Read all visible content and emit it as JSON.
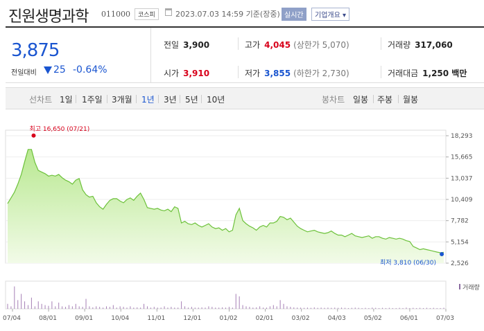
{
  "header": {
    "name": "진원생명과학",
    "code": "011000",
    "market": "코스피",
    "datetime": "2023.07.03 14:59 기준(장중)",
    "realtime": "실시간",
    "company_btn": "기업개요 ▾"
  },
  "price": {
    "current": "3,875",
    "change_label": "전일대비",
    "change": "25",
    "change_pct": "-0.64%"
  },
  "stats": {
    "prev_label": "전일",
    "prev": "3,900",
    "high_label": "고가",
    "high": "4,045",
    "upper": "(상한가 5,070)",
    "volume_label": "거래량",
    "volume": "317,060",
    "open_label": "시가",
    "open": "3,910",
    "low_label": "저가",
    "low": "3,855",
    "lower": "(하한가 2,730)",
    "amount_label": "거래대금",
    "amount": "1,250 백만"
  },
  "tabs": {
    "line_label": "선차트",
    "line": [
      "1일",
      "1주일",
      "3개월",
      "1년",
      "3년",
      "5년",
      "10년"
    ],
    "active": "1년",
    "candle_label": "봉차트",
    "candle": [
      "일봉",
      "주봉",
      "월봉"
    ]
  },
  "chart_data": {
    "type": "area",
    "y_ticks": [
      "18,293",
      "15,665",
      "13,037",
      "10,409",
      "7,782",
      "5,154",
      "2,526"
    ],
    "ylim": [
      2526,
      18293
    ],
    "x_ticks": [
      "07/04",
      "08/01",
      "09/01",
      "10/04",
      "11/01",
      "12/01",
      "01/02",
      "02/01",
      "03/02",
      "04/03",
      "05/02",
      "06/01",
      "07/03"
    ],
    "max_label": "최고 16,650 (07/21)",
    "min_label": "최저 3,810 (06/30)",
    "volume_legend": "거래량",
    "series": [
      {
        "values": [
          9900,
          10600,
          11300,
          12300,
          13500,
          15100,
          16600,
          16600,
          15000,
          14000,
          13800,
          13600,
          13300,
          13400,
          13300,
          13500,
          13100,
          12800,
          12600,
          12300,
          12800,
          13000,
          11600,
          11000,
          10700,
          10800,
          10000,
          9500,
          9200,
          9800,
          10300,
          10500,
          10500,
          10200,
          10000,
          10400,
          10600,
          10300,
          10800,
          11200,
          10400,
          9400,
          9300,
          9200,
          9300,
          9100,
          9000,
          9200,
          8900,
          9500,
          9300,
          7500,
          7700,
          7400,
          7300,
          7500,
          7200,
          7000,
          7200,
          7400,
          7000,
          6800,
          6900,
          6600,
          6800,
          6400,
          6600,
          8500,
          9300,
          7800,
          7400,
          7100,
          6900,
          6600,
          7000,
          7200,
          7000,
          7500,
          7500,
          7700,
          8300,
          8200,
          7900,
          8100,
          7600,
          7100,
          6800,
          6600,
          6400,
          6500,
          6600,
          6400,
          6300,
          6200,
          6300,
          6500,
          6200,
          6000,
          6000,
          5800,
          6000,
          6200,
          5900,
          5800,
          5700,
          5800,
          5900,
          5600,
          5800,
          5800,
          5600,
          5500,
          5700,
          5600,
          5500,
          5600,
          5500,
          5300,
          5200,
          4600,
          4400,
          4200,
          4300,
          4200,
          4100,
          4000,
          3900,
          3810,
          3875
        ]
      }
    ]
  }
}
